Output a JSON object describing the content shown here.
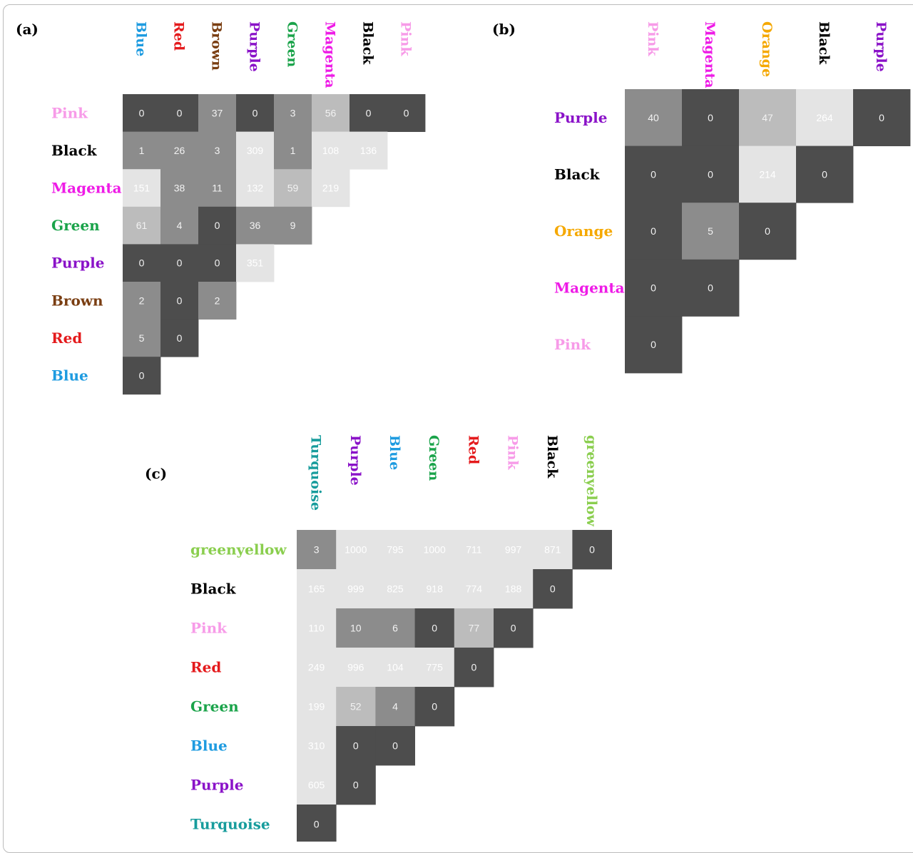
{
  "colors": {
    "Blue": "#1E9BE0",
    "Red": "#E41A1C",
    "Brown": "#7A3E12",
    "Purple": "#8A12C8",
    "Green": "#1AA34A",
    "Magenta": "#EE1BE6",
    "Black": "#000000",
    "Pink": "#F79BE8",
    "Orange": "#F5A800",
    "Turquoise": "#179C9C",
    "greenyellow": "#8ACE4E",
    "cell_dark": "#4D4D4D",
    "cell_mid": "#8C8C8C",
    "cell_light_mid": "#BCBCBC",
    "cell_light": "#E4E4E4"
  },
  "chart_data": [
    {
      "type": "heatmap",
      "panel_label": "(a)",
      "columns": [
        "Blue",
        "Red",
        "Brown",
        "Purple",
        "Green",
        "Magenta",
        "Black",
        "Pink"
      ],
      "rows": [
        "Pink",
        "Black",
        "Magenta",
        "Green",
        "Purple",
        "Brown",
        "Red",
        "Blue"
      ],
      "values": [
        [
          "0",
          "0",
          "37",
          "0",
          "3",
          "56",
          "0",
          "0"
        ],
        [
          "1",
          "26",
          "3",
          "309",
          "1",
          "108",
          "136"
        ],
        [
          "151",
          "38",
          "11",
          "132",
          "59",
          "219"
        ],
        [
          "61",
          "4",
          "0",
          "36",
          "9"
        ],
        [
          "0",
          "0",
          "0",
          "351"
        ],
        [
          "2",
          "0",
          "2"
        ],
        [
          "5",
          "0"
        ],
        [
          "0"
        ]
      ]
    },
    {
      "type": "heatmap",
      "panel_label": "(b)",
      "columns": [
        "Pink",
        "Magenta",
        "Orange",
        "Black",
        "Purple"
      ],
      "rows": [
        "Purple",
        "Black",
        "Orange",
        "Magenta",
        "Pink"
      ],
      "values": [
        [
          "40",
          "0",
          "47",
          "264",
          "0"
        ],
        [
          "0",
          "0",
          "214",
          "0"
        ],
        [
          "0",
          "5",
          "0"
        ],
        [
          "0",
          "0"
        ],
        [
          "0"
        ]
      ]
    },
    {
      "type": "heatmap",
      "panel_label": "(c)",
      "columns": [
        "Turquoise",
        "Purple",
        "Blue",
        "Green",
        "Red",
        "Pink",
        "Black",
        "greenyellow"
      ],
      "rows": [
        "greenyellow",
        "Black",
        "Pink",
        "Red",
        "Green",
        "Blue",
        "Purple",
        "Turquoise"
      ],
      "values": [
        [
          "3",
          "1000",
          "795",
          "1000",
          "711",
          "997",
          "871",
          "0"
        ],
        [
          "165",
          "999",
          "825",
          "918",
          "774",
          "188",
          "0"
        ],
        [
          "110",
          "10",
          "6",
          "0",
          "77",
          "0"
        ],
        [
          "249",
          "996",
          "104",
          "775",
          "0"
        ],
        [
          "199",
          "52",
          "4",
          "0"
        ],
        [
          "310",
          "0",
          "0"
        ],
        [
          "605",
          "0"
        ],
        [
          "0"
        ]
      ]
    }
  ]
}
